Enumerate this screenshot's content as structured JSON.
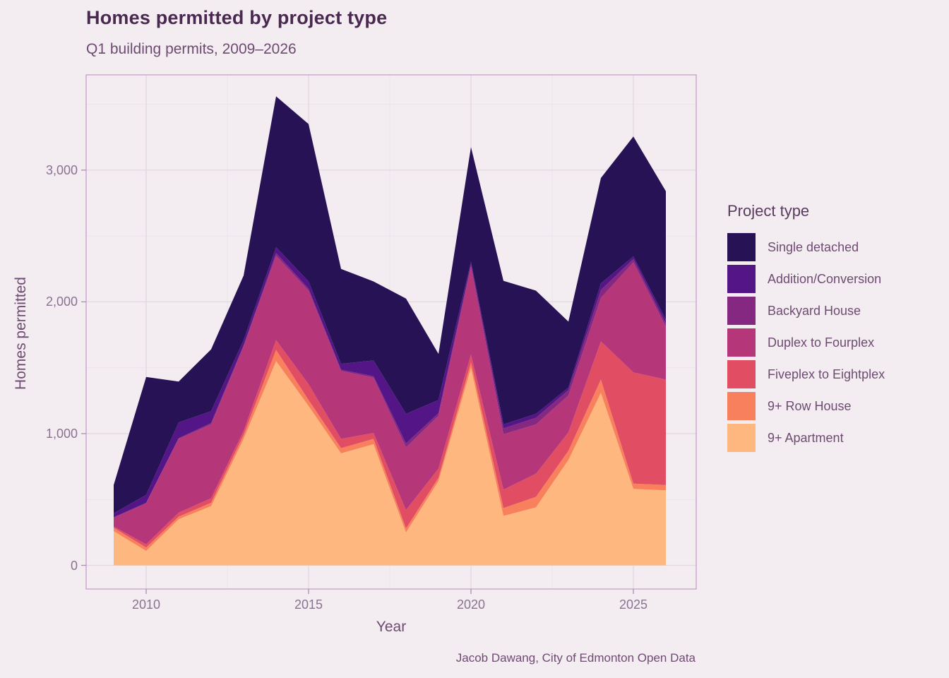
{
  "title": "Homes permitted by project type",
  "subtitle": "Q1 building permits, 2009–2026",
  "caption": "Jacob Dawang, City of Edmonton Open Data",
  "legend": {
    "title": "Project type"
  },
  "theme": {
    "background": "#f3edf2",
    "grid_major": "#e3d7e2",
    "grid_minor": "#ece2ec",
    "panel_border": "#c5a0c8",
    "tick_mark": "#a98fad",
    "title_color": "#4a2950",
    "text_color": "#6e4b70",
    "tick_text_color": "#8b7191"
  },
  "chart_data": {
    "type": "area",
    "stacked": true,
    "title": "Homes permitted by project type",
    "subtitle": "Q1 building permits, 2009–2026",
    "xlabel": "Year",
    "ylabel": "Homes permitted",
    "x": [
      2009,
      2010,
      2011,
      2012,
      2013,
      2014,
      2015,
      2016,
      2017,
      2018,
      2019,
      2020,
      2021,
      2022,
      2023,
      2024,
      2025,
      2026
    ],
    "series": [
      {
        "name": "Single detached",
        "color": "#281256",
        "values": [
          215,
          895,
          310,
          470,
          490,
          1145,
          1195,
          720,
          600,
          875,
          350,
          870,
          1090,
          935,
          500,
          800,
          910,
          975
        ]
      },
      {
        "name": "Addition/Conversion",
        "color": "#541586",
        "values": [
          30,
          60,
          120,
          90,
          40,
          45,
          55,
          45,
          120,
          225,
          100,
          20,
          30,
          30,
          20,
          50,
          20,
          30
        ]
      },
      {
        "name": "Backyard House",
        "color": "#842881",
        "values": [
          5,
          5,
          5,
          10,
          10,
          20,
          15,
          10,
          10,
          30,
          20,
          20,
          45,
          50,
          40,
          60,
          25,
          25
        ]
      },
      {
        "name": "Duplex to Fourplex",
        "color": "#b53679",
        "values": [
          65,
          310,
          560,
          560,
          640,
          640,
          710,
          515,
          420,
          475,
          400,
          665,
          420,
          375,
          280,
          330,
          835,
          400
        ]
      },
      {
        "name": "Fiveplex to Eightplex",
        "color": "#e14e64",
        "values": [
          10,
          25,
          30,
          35,
          30,
          75,
          120,
          70,
          45,
          140,
          70,
          60,
          140,
          175,
          140,
          290,
          845,
          800
        ]
      },
      {
        "name": "9+ Row House",
        "color": "#f9805d",
        "values": [
          25,
          25,
          20,
          25,
          30,
          85,
          45,
          40,
          40,
          30,
          25,
          40,
          60,
          80,
          70,
          100,
          40,
          40
        ]
      },
      {
        "name": "9+ Apartment",
        "color": "#feb87f",
        "values": [
          260,
          110,
          350,
          450,
          960,
          1550,
          1210,
          850,
          920,
          250,
          640,
          1500,
          375,
          440,
          800,
          1310,
          580,
          570
        ]
      }
    ],
    "series_order_note": "series listed top-of-stack first (legend order); stacking bottom-up is the reverse",
    "totals": [
      610,
      1430,
      1395,
      1640,
      2200,
      3560,
      3350,
      2250,
      2155,
      2025,
      1605,
      3175,
      2160,
      2085,
      1850,
      2940,
      3255,
      2840
    ],
    "x_ticks": [
      2010,
      2015,
      2020,
      2025
    ],
    "x_tick_labels": [
      "2010",
      "2015",
      "2020",
      "2025"
    ],
    "x_minor_ticks": [
      2012.5,
      2017.5,
      2022.5
    ],
    "y_ticks": [
      0,
      1000,
      2000,
      3000
    ],
    "y_tick_labels": [
      "0",
      "1,000",
      "2,000",
      "3,000"
    ],
    "y_minor_ticks": [
      500,
      1500,
      2500,
      3500
    ],
    "xlim": [
      2009,
      2026
    ],
    "ylim": [
      0,
      3723
    ],
    "grid": "major and minor, light on light-pink panel",
    "legend_position": "right"
  }
}
